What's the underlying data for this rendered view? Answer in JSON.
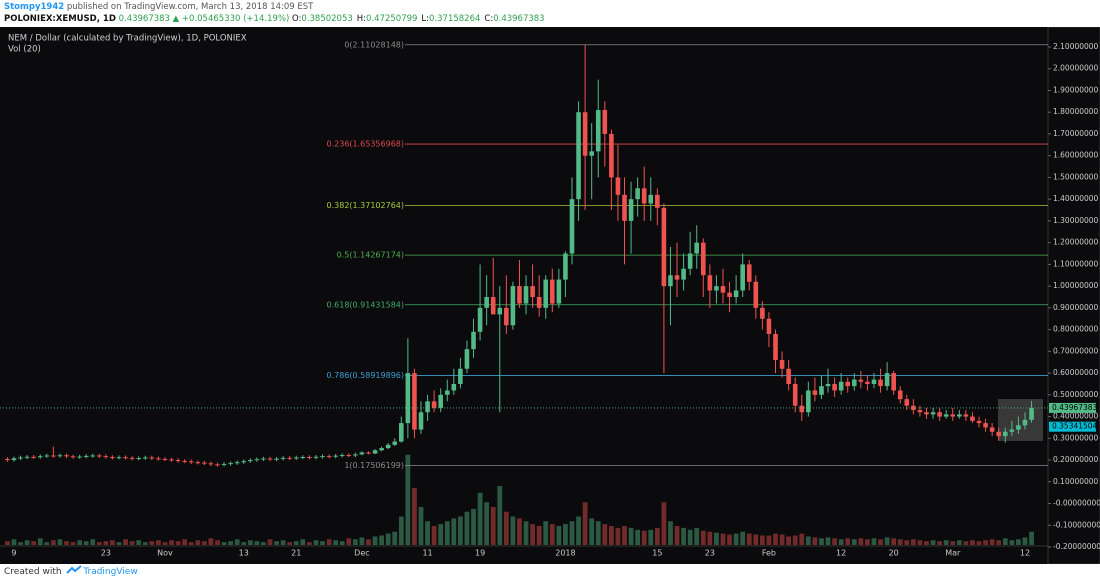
{
  "header": {
    "author": "Stompy1942",
    "published": "published on TradingView.com, March 13, 2018 14:09 EST",
    "symbol": "POLONIEX:XEMUSD, 1D",
    "price": "0.43967383",
    "change": "+0.05465330 (+14.19%)",
    "ohlc": [
      {
        "label": "O:",
        "value": "0.38502053"
      },
      {
        "label": "H:",
        "value": "0.47250799"
      },
      {
        "label": "L:",
        "value": "0.37158264"
      },
      {
        "label": "C:",
        "value": "0.43967383"
      }
    ]
  },
  "footer": {
    "text": "Created with",
    "brand": "TradingView"
  },
  "chart_data": {
    "type": "candlestick",
    "title": "NEM / Dollar (calculated by TradingView), 1D, POLONIEX",
    "volume_label": "Vol (20)",
    "up_color": "#53b987",
    "down_color": "#ef5350",
    "grid": false,
    "categories": [
      null,
      "9",
      null,
      null,
      null,
      null,
      null,
      null,
      null,
      null,
      null,
      null,
      null,
      null,
      null,
      "23",
      null,
      null,
      null,
      null,
      null,
      null,
      null,
      null,
      "Nov",
      null,
      null,
      null,
      null,
      null,
      null,
      null,
      null,
      null,
      null,
      null,
      "13",
      null,
      null,
      null,
      null,
      null,
      null,
      null,
      "21",
      null,
      null,
      null,
      null,
      null,
      null,
      null,
      null,
      null,
      "Dec",
      null,
      null,
      null,
      null,
      null,
      null,
      null,
      null,
      null,
      "11",
      null,
      null,
      null,
      null,
      null,
      null,
      null,
      "19",
      null,
      null,
      null,
      null,
      null,
      null,
      null,
      null,
      null,
      null,
      null,
      null,
      "2018",
      null,
      null,
      null,
      null,
      null,
      null,
      null,
      null,
      null,
      null,
      null,
      null,
      null,
      "15",
      null,
      null,
      null,
      null,
      null,
      null,
      null,
      "23",
      null,
      null,
      null,
      null,
      null,
      null,
      null,
      null,
      "Feb",
      null,
      null,
      null,
      null,
      null,
      null,
      null,
      null,
      null,
      null,
      "12",
      null,
      null,
      null,
      null,
      null,
      null,
      null,
      "20",
      null,
      null,
      null,
      null,
      null,
      null,
      null,
      null,
      "Mar",
      null,
      null,
      null,
      null,
      null,
      null,
      null,
      null,
      null,
      null,
      "12",
      null
    ],
    "open": [
      0.205,
      0.2,
      0.208,
      0.212,
      0.215,
      0.213,
      0.218,
      0.221,
      0.219,
      0.222,
      0.217,
      0.214,
      0.216,
      0.219,
      0.221,
      0.218,
      0.214,
      0.211,
      0.213,
      0.21,
      0.207,
      0.209,
      0.212,
      0.208,
      0.205,
      0.203,
      0.2,
      0.196,
      0.194,
      0.19,
      0.188,
      0.185,
      0.18,
      0.178,
      0.182,
      0.186,
      0.19,
      0.195,
      0.2,
      0.204,
      0.207,
      0.203,
      0.206,
      0.21,
      0.208,
      0.212,
      0.214,
      0.211,
      0.215,
      0.218,
      0.216,
      0.22,
      0.223,
      0.221,
      0.226,
      0.235,
      0.23,
      0.245,
      0.255,
      0.27,
      0.285,
      0.37,
      0.6,
      0.34,
      0.42,
      0.47,
      0.44,
      0.5,
      0.52,
      0.55,
      0.62,
      0.71,
      0.79,
      0.9,
      0.95,
      0.87,
      0.9,
      0.82,
      1.0,
      0.92,
      1.0,
      0.95,
      0.9,
      1.03,
      0.92,
      1.03,
      1.15,
      1.4,
      1.8,
      1.6,
      1.62,
      1.81,
      1.7,
      1.5,
      1.42,
      1.3,
      1.4,
      1.45,
      1.38,
      1.42,
      1.36,
      1.0,
      1.05,
      1.03,
      1.08,
      1.15,
      1.2,
      1.05,
      0.98,
      1.0,
      0.97,
      0.95,
      0.98,
      1.1,
      1.02,
      0.9,
      0.85,
      0.78,
      0.66,
      0.62,
      0.55,
      0.45,
      0.42,
      0.52,
      0.5,
      0.54,
      0.55,
      0.52,
      0.56,
      0.54,
      0.57,
      0.56,
      0.55,
      0.57,
      0.54,
      0.6,
      0.52,
      0.48,
      0.45,
      0.43,
      0.42,
      0.41,
      0.42,
      0.4,
      0.41,
      0.4,
      0.41,
      0.4,
      0.38,
      0.37,
      0.35,
      0.33,
      0.31,
      0.33,
      0.34,
      0.36,
      0.38502053
    ],
    "high": [
      0.213,
      0.216,
      0.22,
      0.223,
      0.223,
      0.226,
      0.229,
      0.262,
      0.23,
      0.23,
      0.225,
      0.224,
      0.227,
      0.229,
      0.229,
      0.226,
      0.222,
      0.221,
      0.221,
      0.218,
      0.217,
      0.22,
      0.22,
      0.216,
      0.213,
      0.211,
      0.208,
      0.204,
      0.202,
      0.198,
      0.196,
      0.193,
      0.188,
      0.19,
      0.194,
      0.198,
      0.203,
      0.208,
      0.212,
      0.215,
      0.215,
      0.214,
      0.218,
      0.218,
      0.22,
      0.222,
      0.222,
      0.223,
      0.226,
      0.226,
      0.228,
      0.231,
      0.231,
      0.234,
      0.24,
      0.24,
      0.25,
      0.262,
      0.278,
      0.3,
      0.4,
      0.76,
      0.62,
      0.47,
      0.5,
      0.52,
      0.53,
      0.57,
      0.62,
      0.67,
      0.75,
      0.85,
      1.1,
      1.05,
      1.13,
      1.0,
      1.05,
      1.02,
      1.12,
      1.05,
      1.1,
      1.05,
      1.05,
      1.08,
      1.08,
      1.16,
      1.5,
      1.85,
      2.11,
      1.75,
      1.95,
      1.85,
      1.72,
      1.65,
      1.5,
      1.48,
      1.5,
      1.55,
      1.5,
      1.45,
      1.38,
      1.18,
      1.2,
      1.15,
      1.25,
      1.28,
      1.22,
      1.1,
      1.05,
      1.08,
      1.02,
      1.05,
      1.15,
      1.12,
      1.05,
      0.93,
      0.88,
      0.8,
      0.7,
      0.66,
      0.58,
      0.5,
      0.56,
      0.58,
      0.59,
      0.62,
      0.58,
      0.6,
      0.58,
      0.6,
      0.61,
      0.59,
      0.6,
      0.62,
      0.65,
      0.61,
      0.54,
      0.5,
      0.48,
      0.45,
      0.44,
      0.44,
      0.44,
      0.43,
      0.44,
      0.43,
      0.43,
      0.42,
      0.4,
      0.39,
      0.37,
      0.35,
      0.35,
      0.38,
      0.4,
      0.42,
      0.47250799
    ],
    "low": [
      0.192,
      0.192,
      0.2,
      0.204,
      0.205,
      0.205,
      0.21,
      0.211,
      0.211,
      0.209,
      0.206,
      0.206,
      0.208,
      0.211,
      0.21,
      0.206,
      0.203,
      0.203,
      0.202,
      0.199,
      0.199,
      0.201,
      0.2,
      0.197,
      0.195,
      0.192,
      0.188,
      0.186,
      0.182,
      0.18,
      0.177,
      0.172,
      0.17,
      0.17,
      0.174,
      0.178,
      0.182,
      0.187,
      0.192,
      0.196,
      0.195,
      0.195,
      0.198,
      0.2,
      0.2,
      0.204,
      0.203,
      0.203,
      0.207,
      0.208,
      0.208,
      0.212,
      0.213,
      0.213,
      0.222,
      0.226,
      0.228,
      0.24,
      0.25,
      0.265,
      0.28,
      0.3,
      0.3,
      0.32,
      0.38,
      0.42,
      0.42,
      0.47,
      0.5,
      0.53,
      0.6,
      0.67,
      0.75,
      0.82,
      0.88,
      0.42,
      0.78,
      0.8,
      0.9,
      0.87,
      0.9,
      0.86,
      0.85,
      0.88,
      0.9,
      0.95,
      1.1,
      1.3,
      1.35,
      1.4,
      1.5,
      1.55,
      1.35,
      1.3,
      1.1,
      1.15,
      1.32,
      1.3,
      1.3,
      1.28,
      0.6,
      0.82,
      0.95,
      0.98,
      1.05,
      1.08,
      0.95,
      0.9,
      0.92,
      0.92,
      0.88,
      0.92,
      0.95,
      0.98,
      0.85,
      0.8,
      0.72,
      0.6,
      0.58,
      0.52,
      0.42,
      0.38,
      0.4,
      0.47,
      0.48,
      0.51,
      0.49,
      0.5,
      0.51,
      0.52,
      0.53,
      0.52,
      0.53,
      0.51,
      0.52,
      0.5,
      0.46,
      0.43,
      0.41,
      0.4,
      0.39,
      0.39,
      0.38,
      0.39,
      0.38,
      0.39,
      0.38,
      0.37,
      0.35,
      0.33,
      0.31,
      0.29,
      0.28,
      0.31,
      0.32,
      0.34,
      0.37158264
    ],
    "close": [
      0.2,
      0.208,
      0.212,
      0.215,
      0.213,
      0.218,
      0.221,
      0.219,
      0.222,
      0.217,
      0.214,
      0.216,
      0.219,
      0.221,
      0.218,
      0.214,
      0.211,
      0.213,
      0.21,
      0.207,
      0.209,
      0.212,
      0.208,
      0.205,
      0.203,
      0.2,
      0.196,
      0.194,
      0.19,
      0.188,
      0.185,
      0.18,
      0.178,
      0.182,
      0.186,
      0.19,
      0.195,
      0.2,
      0.204,
      0.207,
      0.203,
      0.206,
      0.21,
      0.208,
      0.212,
      0.214,
      0.211,
      0.215,
      0.218,
      0.216,
      0.22,
      0.223,
      0.221,
      0.226,
      0.235,
      0.23,
      0.245,
      0.255,
      0.27,
      0.285,
      0.37,
      0.6,
      0.34,
      0.42,
      0.47,
      0.44,
      0.5,
      0.52,
      0.55,
      0.62,
      0.71,
      0.79,
      0.9,
      0.95,
      0.87,
      0.9,
      0.82,
      1.0,
      0.92,
      1.0,
      0.95,
      0.9,
      1.03,
      0.92,
      1.03,
      1.15,
      1.4,
      1.8,
      1.6,
      1.62,
      1.81,
      1.7,
      1.5,
      1.42,
      1.3,
      1.4,
      1.45,
      1.38,
      1.42,
      1.36,
      1.0,
      1.05,
      1.03,
      1.08,
      1.15,
      1.2,
      1.05,
      0.98,
      1.0,
      0.97,
      0.95,
      0.98,
      1.1,
      1.02,
      0.9,
      0.85,
      0.78,
      0.66,
      0.62,
      0.55,
      0.45,
      0.42,
      0.52,
      0.5,
      0.54,
      0.55,
      0.52,
      0.56,
      0.54,
      0.57,
      0.56,
      0.55,
      0.57,
      0.54,
      0.6,
      0.52,
      0.48,
      0.45,
      0.43,
      0.42,
      0.41,
      0.42,
      0.4,
      0.41,
      0.4,
      0.41,
      0.4,
      0.38,
      0.37,
      0.35,
      0.33,
      0.31,
      0.33,
      0.34,
      0.36,
      0.385,
      0.43967383
    ],
    "volume": [
      4,
      6,
      3,
      5,
      4,
      7,
      3,
      5,
      6,
      4,
      3,
      5,
      4,
      6,
      3,
      4,
      5,
      3,
      6,
      4,
      5,
      3,
      4,
      5,
      3,
      5,
      4,
      6,
      3,
      5,
      4,
      7,
      5,
      3,
      4,
      6,
      3,
      5,
      4,
      3,
      6,
      4,
      5,
      3,
      4,
      6,
      3,
      5,
      4,
      6,
      5,
      4,
      7,
      6,
      8,
      6,
      9,
      10,
      12,
      14,
      30,
      95,
      60,
      40,
      25,
      20,
      22,
      25,
      28,
      30,
      35,
      38,
      55,
      45,
      40,
      62,
      35,
      30,
      28,
      25,
      22,
      20,
      25,
      22,
      20,
      22,
      25,
      30,
      45,
      28,
      25,
      22,
      20,
      18,
      20,
      18,
      16,
      15,
      16,
      18,
      45,
      25,
      20,
      18,
      16,
      18,
      15,
      14,
      13,
      12,
      11,
      12,
      14,
      12,
      11,
      10,
      10,
      12,
      11,
      9,
      10,
      12,
      9,
      8,
      7,
      8,
      7,
      6,
      7,
      6,
      7,
      6,
      7,
      6,
      8,
      7,
      6,
      5,
      6,
      5,
      4,
      5,
      4,
      5,
      4,
      5,
      4,
      5,
      4,
      5,
      6,
      5,
      7,
      5,
      6,
      8,
      14
    ],
    "vlim": [
      0,
      100
    ],
    "ylim": [
      -0.2,
      2.18
    ],
    "yticks": [
      {
        "value": -0.2,
        "label": "-0.20000000"
      },
      {
        "value": -0.1,
        "label": "-0.10000000"
      },
      {
        "value": 0,
        "label": "-0.00000000"
      },
      {
        "value": 0.1,
        "label": "0.10000000"
      },
      {
        "value": 0.2,
        "label": "0.20000000"
      },
      {
        "value": 0.3,
        "label": "0.30000000"
      },
      {
        "value": 0.4,
        "label": "0.40000000"
      },
      {
        "value": 0.5,
        "label": "0.50000000"
      },
      {
        "value": 0.6,
        "label": "0.60000000"
      },
      {
        "value": 0.7,
        "label": "0.70000000"
      },
      {
        "value": 0.8,
        "label": "0.80000000"
      },
      {
        "value": 0.9,
        "label": "0.90000000"
      },
      {
        "value": 1.0,
        "label": "1.00000000"
      },
      {
        "value": 1.1,
        "label": "1.10000000"
      },
      {
        "value": 1.2,
        "label": "1.20000000"
      },
      {
        "value": 1.3,
        "label": "1.30000000"
      },
      {
        "value": 1.4,
        "label": "1.40000000"
      },
      {
        "value": 1.5,
        "label": "1.50000000"
      },
      {
        "value": 1.6,
        "label": "1.60000000"
      },
      {
        "value": 1.7,
        "label": "1.70000000"
      },
      {
        "value": 1.8,
        "label": "1.80000000"
      },
      {
        "value": 1.9,
        "label": "1.90000000"
      },
      {
        "value": 2.0,
        "label": "2.00000000"
      },
      {
        "value": 2.1,
        "label": "2.10000000"
      }
    ],
    "fib_levels": [
      {
        "label": "0(2.11028148)",
        "value": 2.11028148,
        "color": "#8a8a8a"
      },
      {
        "label": "0.236(1.65356968)",
        "value": 1.65356968,
        "color": "#e0484f"
      },
      {
        "label": "0.382(1.37102764)",
        "value": 1.37102764,
        "color": "#a6c93a"
      },
      {
        "label": "0.5(1.14267174)",
        "value": 1.14267174,
        "color": "#4caf50"
      },
      {
        "label": "0.618(0.91431584)",
        "value": 0.91431584,
        "color": "#3fae6a"
      },
      {
        "label": "0.786(0.58919896)",
        "value": 0.58919896,
        "color": "#3b9fd4"
      },
      {
        "label": "1(0.17506199)",
        "value": 0.17506199,
        "color": "#8a8a8a"
      }
    ],
    "price_labels": [
      {
        "value": 0.43967383,
        "color": "#53b987",
        "line": true
      },
      {
        "value": 0.35341504,
        "color": "#00bcd4",
        "line": false
      }
    ]
  }
}
